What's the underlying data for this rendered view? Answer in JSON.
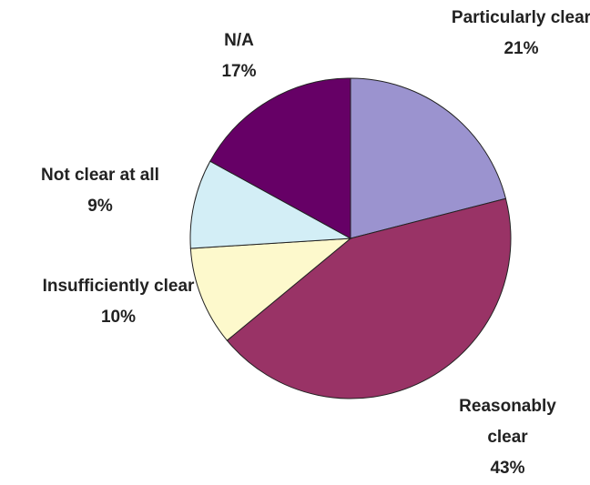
{
  "chart_data": {
    "type": "pie",
    "categories": [
      "Particularly clear",
      "Reasonably clear",
      "Insufficiently clear",
      "Not clear at all",
      "N/A"
    ],
    "values": [
      21,
      43,
      10,
      9,
      17
    ],
    "value_labels": [
      "21%",
      "43%",
      "10%",
      "9%",
      "17%"
    ],
    "colors": [
      "#9b93cf",
      "#993366",
      "#fdf9cc",
      "#d3eef6",
      "#660066"
    ]
  }
}
